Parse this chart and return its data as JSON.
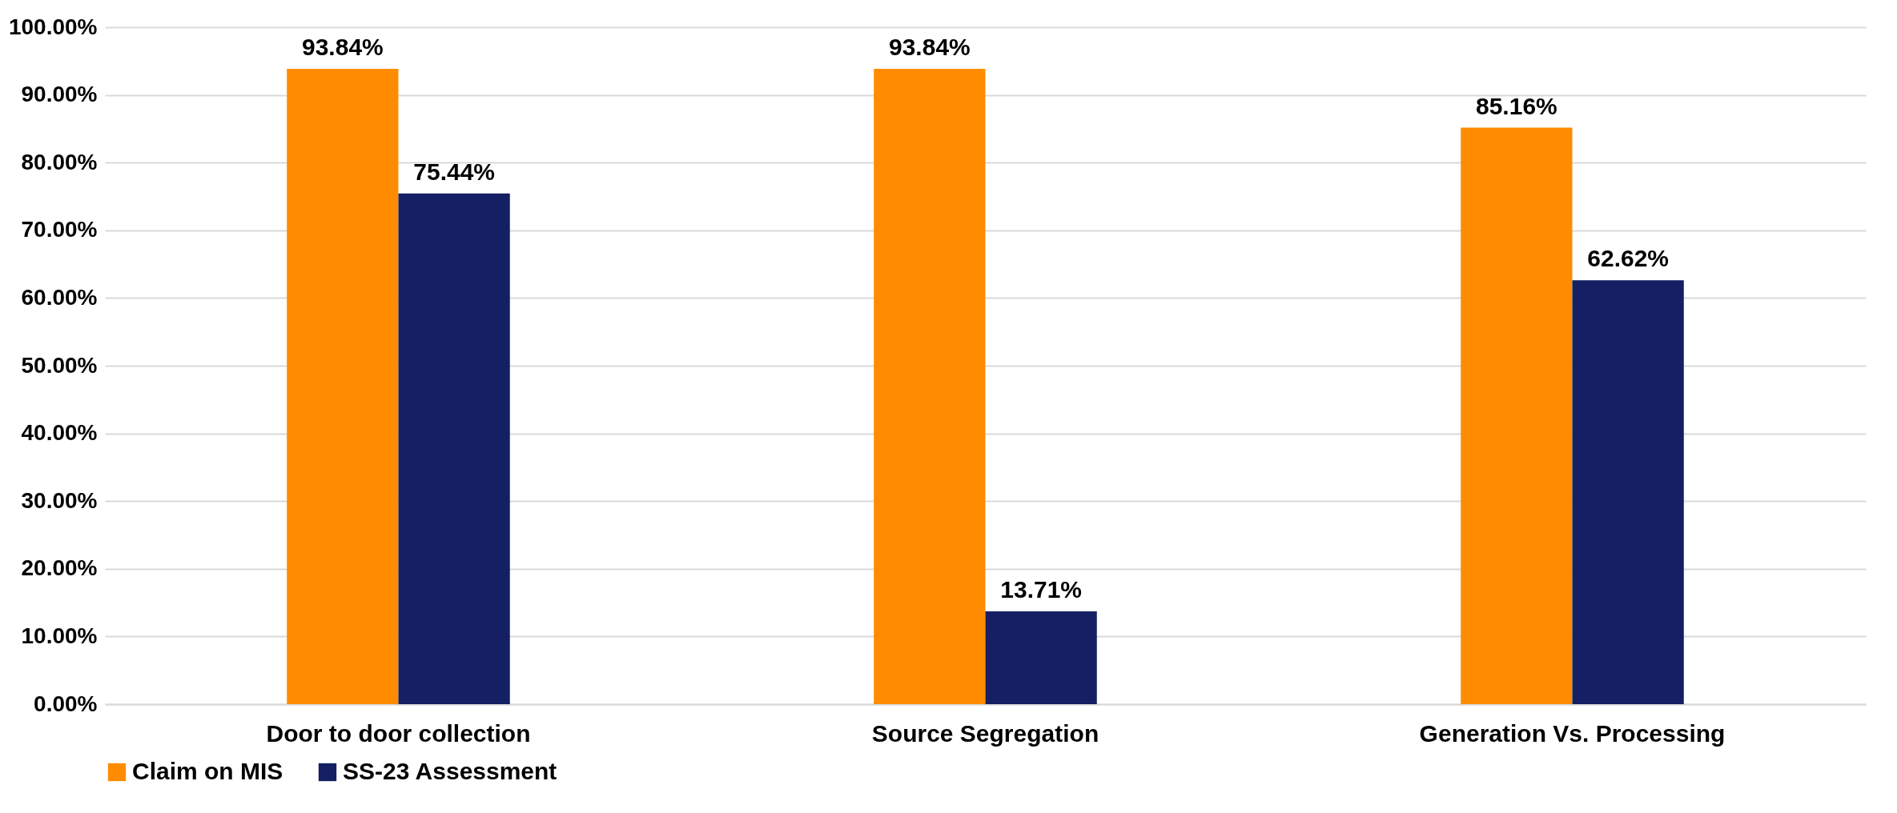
{
  "chart_data": {
    "type": "bar",
    "categories": [
      "Door to door collection",
      "Source Segregation",
      "Generation Vs. Processing"
    ],
    "series": [
      {
        "name": "Claim on MIS",
        "color": "#ff8c00",
        "values": [
          93.84,
          93.84,
          85.16
        ],
        "value_labels": [
          "93.84%",
          "93.84%",
          "85.16%"
        ]
      },
      {
        "name": "SS-23 Assessment",
        "color": "#142063",
        "values": [
          75.44,
          13.71,
          62.62
        ],
        "value_labels": [
          "75.44%",
          "13.71%",
          "62.62%"
        ]
      }
    ],
    "ylim": [
      0,
      100
    ],
    "yticks": [
      {
        "value": 0,
        "label": "0.00%"
      },
      {
        "value": 10,
        "label": "10.00%"
      },
      {
        "value": 20,
        "label": "20.00%"
      },
      {
        "value": 30,
        "label": "30.00%"
      },
      {
        "value": 40,
        "label": "40.00%"
      },
      {
        "value": 50,
        "label": "50.00%"
      },
      {
        "value": 60,
        "label": "60.00%"
      },
      {
        "value": 70,
        "label": "70.00%"
      },
      {
        "value": 80,
        "label": "80.00%"
      },
      {
        "value": 90,
        "label": "90.00%"
      },
      {
        "value": 100,
        "label": "100.00%"
      }
    ],
    "grid": "y",
    "legend": "bottom"
  }
}
